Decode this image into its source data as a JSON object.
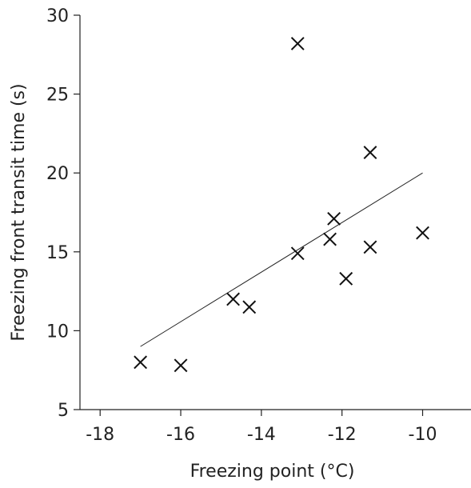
{
  "chart_data": {
    "type": "scatter",
    "title": "",
    "xlabel": "Freezing point (°C)",
    "ylabel": "Freezing front transit time (s)",
    "xlim": [
      -18.5,
      -8.8
    ],
    "ylim": [
      5,
      30
    ],
    "xticks": [
      -18,
      -16,
      -14,
      -12,
      -10
    ],
    "yticks": [
      5,
      10,
      15,
      20,
      25,
      30
    ],
    "xtick_labels": [
      "-18",
      "-16",
      "-14",
      "-12",
      "-10"
    ],
    "ytick_labels": [
      "5",
      "10",
      "15",
      "20",
      "25",
      "30"
    ],
    "grid": false,
    "marker": "x",
    "points": [
      {
        "x": -17.0,
        "y": 8.0
      },
      {
        "x": -16.0,
        "y": 7.8
      },
      {
        "x": -14.7,
        "y": 12.0
      },
      {
        "x": -14.3,
        "y": 11.5
      },
      {
        "x": -13.1,
        "y": 28.2
      },
      {
        "x": -13.1,
        "y": 14.9
      },
      {
        "x": -12.3,
        "y": 15.8
      },
      {
        "x": -12.2,
        "y": 17.1
      },
      {
        "x": -11.9,
        "y": 13.3
      },
      {
        "x": -11.3,
        "y": 21.3
      },
      {
        "x": -11.3,
        "y": 15.3
      },
      {
        "x": -10.0,
        "y": 16.2
      }
    ],
    "trendline": {
      "x": [
        -17.0,
        -10.0
      ],
      "y": [
        9.0,
        20.0
      ]
    }
  }
}
